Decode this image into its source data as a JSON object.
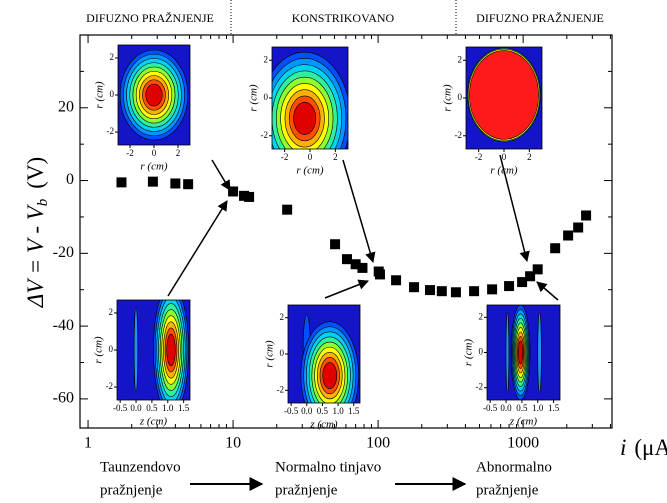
{
  "chart_data": {
    "type": "scatter",
    "header_labels": [
      "DIFUZNO PRAŽNJENJE",
      "KONSTRIKOVANO",
      "DIFUZNO PRAŽNJENJE"
    ],
    "x_label": {
      "symbol": "i",
      "unit": "(μA)"
    },
    "y_label": {
      "text": "ΔV = V - V",
      "sub": "b",
      "unit": "(V)"
    },
    "log_x": true,
    "marker_color": "#000000",
    "x": [
      1.7,
      2.8,
      4.0,
      4.9,
      10,
      11.9,
      12.9,
      23.6,
      50.5,
      61,
      70,
      78,
      101,
      103,
      133,
      177,
      228,
      275,
      344,
      459,
      611,
      800,
      984,
      1117,
      1260,
      1663,
      2043,
      2396,
      2717
    ],
    "values": [
      -0.5,
      -0.3,
      -0.8,
      -1.0,
      -3.0,
      -4.2,
      -4.5,
      -8.0,
      -17.5,
      -21.6,
      -23,
      -24,
      -25,
      -25.8,
      -27.4,
      -29.3,
      -30.1,
      -30.4,
      -30.7,
      -30.4,
      -29.9,
      -29,
      -27.9,
      -26.3,
      -24.4,
      -18.6,
      -15.1,
      -12.9,
      -9.6
    ],
    "xlim": [
      0.88,
      4100
    ],
    "ylim": [
      -68,
      40
    ],
    "xticks": [
      1,
      10,
      100,
      1000
    ],
    "xticks_minor": [
      2,
      3,
      4,
      5,
      6,
      7,
      8,
      9,
      20,
      30,
      40,
      50,
      60,
      70,
      80,
      90,
      200,
      300,
      400,
      500,
      600,
      700,
      800,
      900,
      2000,
      3000,
      4000
    ],
    "yticks": [
      -60,
      -40,
      -20,
      0,
      20
    ],
    "yticks_minor": [
      -50,
      -30,
      -10,
      10,
      30
    ],
    "insets": [
      {
        "xlabel": "r (cm)",
        "ylabel": "r (cm)",
        "xlim": [
          -3,
          3
        ],
        "ylim": [
          -2.7,
          2.7
        ],
        "xticks": [
          -2,
          0,
          2
        ],
        "yticks": [
          -2,
          0,
          2
        ]
      },
      {
        "xlabel": "r (cm)",
        "ylabel": "r (cm)",
        "xlim": [
          -3,
          3
        ],
        "ylim": [
          -2.7,
          2.7
        ],
        "xticks": [
          -2,
          0,
          2
        ],
        "yticks": [
          -2,
          0,
          2
        ]
      },
      {
        "xlabel": "r (cm)",
        "ylabel": "r (cm)",
        "xlim": [
          -3,
          3
        ],
        "ylim": [
          -2.7,
          2.7
        ],
        "xticks": [
          -2,
          0,
          2
        ],
        "yticks": [
          -2,
          0,
          2
        ]
      },
      {
        "xlabel": "z (cm)",
        "ylabel": "r (cm)",
        "xlim": [
          -0.6,
          1.7
        ],
        "ylim": [
          -2.7,
          2.7
        ],
        "xticks": [
          -0.5,
          {
            "value": 0,
            "label": "0.0"
          },
          0.5,
          {
            "value": 1,
            "label": "1.0"
          },
          1.5
        ],
        "yticks": [
          -2,
          0,
          2
        ]
      },
      {
        "xlabel": "z (cm)",
        "ylabel": "r (cm)",
        "xlim": [
          -0.6,
          1.7
        ],
        "ylim": [
          -2.7,
          2.7
        ],
        "xticks": [
          -0.5,
          {
            "value": 0,
            "label": "0.0"
          },
          0.5,
          {
            "value": 1,
            "label": "1.0"
          },
          1.5
        ],
        "yticks": [
          -2,
          0,
          2
        ]
      },
      {
        "xlabel": "z (cm)",
        "ylabel": "r (cm)",
        "xlim": [
          -0.6,
          1.7
        ],
        "ylim": [
          -2.7,
          2.7
        ],
        "xticks": [
          -0.5,
          {
            "value": 0,
            "label": "0.0"
          },
          0.5,
          {
            "value": 1,
            "label": "1.0"
          },
          1.5
        ],
        "yticks": [
          -2,
          0,
          2
        ]
      }
    ],
    "stages": [
      {
        "line1": "Taunzendovo",
        "line2": "pražnjenje"
      },
      {
        "line1": "Normalno tinjavo",
        "line2": "pražnjenje"
      },
      {
        "line1": "Abnormalno",
        "line2": "pražnjenje"
      }
    ]
  }
}
